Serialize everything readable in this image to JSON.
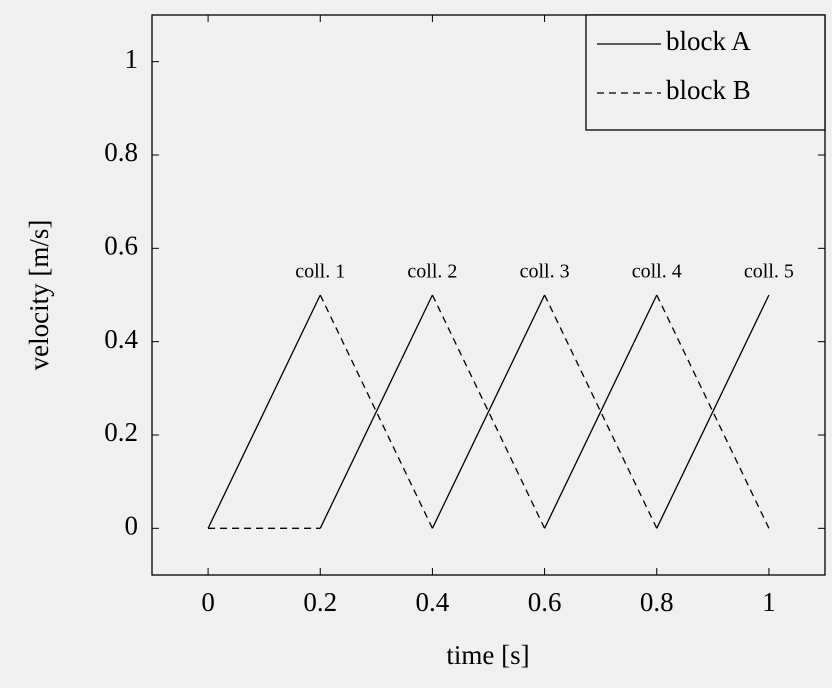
{
  "chart_data": {
    "type": "line",
    "xlabel": "time [s]",
    "ylabel": "velocity [m/s]",
    "x": [
      0,
      0.2,
      0.2,
      0.2,
      0.4,
      0.4,
      0.4,
      0.6,
      0.6,
      0.6,
      0.8,
      0.8,
      0.8,
      1
    ],
    "series": [
      {
        "name": "block A",
        "color": "#000000",
        "dash": false,
        "values": [
          0,
          0.5,
          null,
          0,
          0.5,
          null,
          0,
          0.5,
          null,
          0,
          0.5,
          null,
          0,
          0.5
        ]
      },
      {
        "name": "block B",
        "color": "#000000",
        "dash": true,
        "values": [
          0,
          0,
          null,
          0.5,
          0,
          null,
          0.5,
          0,
          null,
          0.5,
          0,
          null,
          0.5,
          0
        ]
      }
    ],
    "annotations": [
      {
        "text": "coll. 1",
        "x": 0.2,
        "y": 0.5
      },
      {
        "text": "coll. 2",
        "x": 0.4,
        "y": 0.5
      },
      {
        "text": "coll. 3",
        "x": 0.6,
        "y": 0.5
      },
      {
        "text": "coll. 4",
        "x": 0.8,
        "y": 0.5
      },
      {
        "text": "coll. 5",
        "x": 1,
        "y": 0.5
      }
    ],
    "xlim": [
      -0.1,
      1.1
    ],
    "ylim": [
      -0.1,
      1.1
    ],
    "xticks": [
      0,
      0.2,
      0.4,
      0.6,
      0.8,
      1
    ],
    "yticks": [
      0,
      0.2,
      0.4,
      0.6,
      0.8,
      1
    ],
    "legend": "upper right"
  }
}
